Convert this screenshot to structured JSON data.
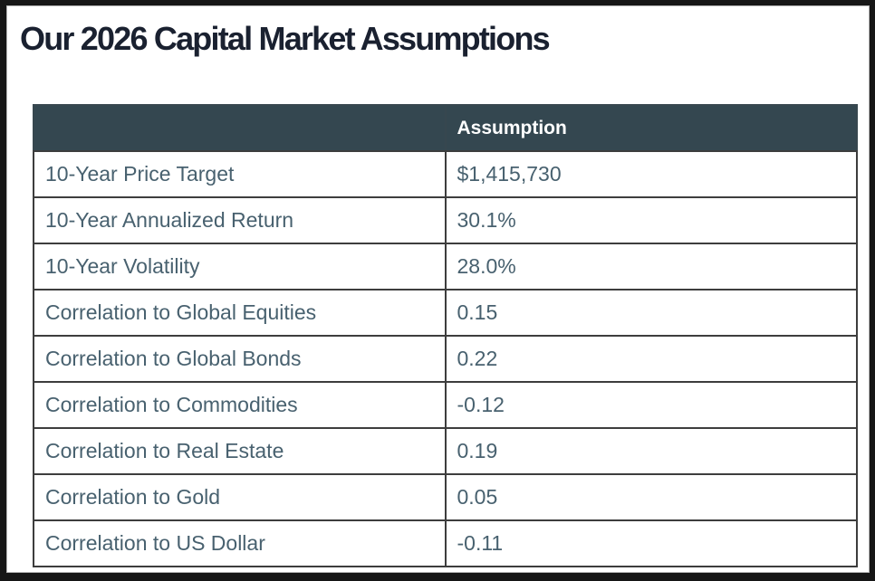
{
  "page": {
    "title": "Our 2026 Capital Market Assumptions"
  },
  "table": {
    "columns": [
      "",
      "Assumption"
    ],
    "rows": [
      {
        "label": "10-Year Price Target",
        "value": "$1,415,730"
      },
      {
        "label": "10-Year Annualized Return",
        "value": "30.1%"
      },
      {
        "label": "10-Year Volatility",
        "value": "28.0%"
      },
      {
        "label": "Correlation to Global Equities",
        "value": "0.15"
      },
      {
        "label": "Correlation to Global Bonds",
        "value": "0.22"
      },
      {
        "label": "Correlation to Commodities",
        "value": "-0.12"
      },
      {
        "label": "Correlation to Real Estate",
        "value": "0.19"
      },
      {
        "label": "Correlation to Gold",
        "value": "0.05"
      },
      {
        "label": "Correlation to US Dollar",
        "value": "-0.11"
      }
    ]
  },
  "colors": {
    "header_bg": "#344750",
    "header_text": "#ffffff",
    "cell_text": "#48616f",
    "title_text": "#1a2130",
    "border": "#3d3d3d"
  }
}
